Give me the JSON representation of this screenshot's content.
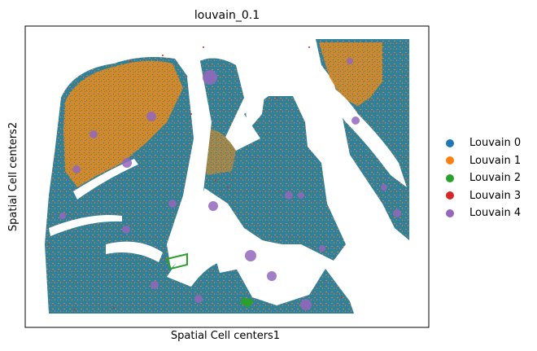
{
  "chart_data": {
    "type": "scatter",
    "title": "louvain_0.1",
    "xlabel": "Spatial Cell centers1",
    "ylabel": "Spatial Cell centers2",
    "grid": false,
    "legend_position": "right",
    "series": [
      {
        "name": "Louvain 0",
        "color": "#1f77b4"
      },
      {
        "name": "Louvain 1",
        "color": "#ff7f0e"
      },
      {
        "name": "Louvain 2",
        "color": "#2ca02c"
      },
      {
        "name": "Louvain 3",
        "color": "#d62728"
      },
      {
        "name": "Louvain 4",
        "color": "#9467bd"
      }
    ]
  }
}
